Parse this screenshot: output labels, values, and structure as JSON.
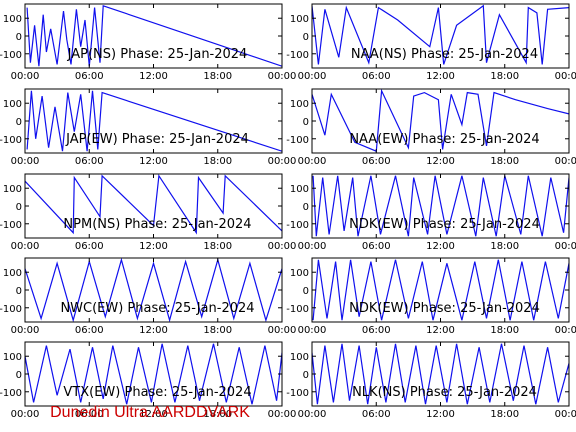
{
  "chart_data": [
    {
      "type": "line",
      "title": "JAP(NS) Phase: 25-Jan-2024",
      "x_ticks": [
        "00:00",
        "06:00",
        "12:00",
        "18:00",
        "00:00"
      ],
      "y_ticks": [
        100,
        0,
        -100
      ],
      "ylim": [
        -180,
        180
      ],
      "series": [
        {
          "points": [
            [
              0.2,
              160
            ],
            [
              0.5,
              -150
            ],
            [
              0.9,
              60
            ],
            [
              1.3,
              -170
            ],
            [
              1.7,
              120
            ],
            [
              2.0,
              -90
            ],
            [
              2.4,
              40
            ],
            [
              3.0,
              -160
            ],
            [
              3.6,
              140
            ],
            [
              3.9,
              -20
            ],
            [
              4.3,
              -160
            ],
            [
              4.8,
              150
            ],
            [
              5.2,
              -60
            ],
            [
              5.6,
              90
            ],
            [
              6.0,
              -170
            ],
            [
              6.5,
              160
            ],
            [
              7.0,
              -150
            ],
            [
              7.3,
              170
            ],
            [
              24.0,
              -170
            ]
          ]
        }
      ]
    },
    {
      "type": "line",
      "title": "NAA(NS) Phase: 25-Jan-2024",
      "x_ticks": [
        "00:00",
        "06:00",
        "12:00",
        "18:00",
        "00:00"
      ],
      "y_ticks": [
        100,
        0,
        -100
      ],
      "ylim": [
        -180,
        180
      ],
      "series": [
        {
          "points": [
            [
              0.0,
              170
            ],
            [
              0.6,
              -160
            ],
            [
              1.2,
              150
            ],
            [
              2.5,
              -120
            ],
            [
              3.2,
              160
            ],
            [
              5.3,
              -150
            ],
            [
              6.2,
              160
            ],
            [
              8.0,
              90
            ],
            [
              11.0,
              -60
            ],
            [
              11.8,
              160
            ],
            [
              12.3,
              -160
            ],
            [
              13.5,
              60
            ],
            [
              16.0,
              170
            ],
            [
              16.3,
              -150
            ],
            [
              17.5,
              120
            ],
            [
              20.0,
              -150
            ],
            [
              20.2,
              160
            ],
            [
              21.0,
              130
            ],
            [
              21.5,
              -160
            ],
            [
              22.0,
              150
            ],
            [
              24.0,
              160
            ]
          ]
        }
      ]
    },
    {
      "type": "line",
      "title": "JAP(EW) Phase: 25-Jan-2024",
      "x_ticks": [
        "00:00",
        "06:00",
        "12:00",
        "18:00",
        "00:00"
      ],
      "y_ticks": [
        100,
        0,
        -100
      ],
      "ylim": [
        -180,
        180
      ],
      "series": [
        {
          "points": [
            [
              0.2,
              -160
            ],
            [
              0.6,
              170
            ],
            [
              1.0,
              -100
            ],
            [
              1.6,
              140
            ],
            [
              2.2,
              -150
            ],
            [
              2.8,
              80
            ],
            [
              3.5,
              -170
            ],
            [
              4.0,
              160
            ],
            [
              4.6,
              -60
            ],
            [
              5.2,
              150
            ],
            [
              5.8,
              -170
            ],
            [
              6.3,
              170
            ],
            [
              6.8,
              -160
            ],
            [
              7.2,
              160
            ],
            [
              24.0,
              -170
            ]
          ]
        }
      ]
    },
    {
      "type": "line",
      "title": "NAA(EW) Phase: 25-Jan-2024",
      "x_ticks": [
        "00:00",
        "06:00",
        "12:00",
        "18:00",
        "00:00"
      ],
      "y_ticks": [
        100,
        0,
        -100
      ],
      "ylim": [
        -180,
        180
      ],
      "series": [
        {
          "points": [
            [
              0.0,
              150
            ],
            [
              1.2,
              -80
            ],
            [
              1.8,
              150
            ],
            [
              4.0,
              -120
            ],
            [
              6.0,
              -170
            ],
            [
              6.5,
              170
            ],
            [
              9.0,
              -150
            ],
            [
              9.5,
              140
            ],
            [
              10.5,
              160
            ],
            [
              11.8,
              120
            ],
            [
              12.2,
              -160
            ],
            [
              13.0,
              150
            ],
            [
              14.0,
              -20
            ],
            [
              14.5,
              160
            ],
            [
              15.5,
              150
            ],
            [
              16.3,
              -140
            ],
            [
              17.0,
              160
            ],
            [
              19.0,
              120
            ],
            [
              22.0,
              70
            ],
            [
              24.0,
              40
            ]
          ]
        }
      ]
    },
    {
      "type": "line",
      "title": "NPM(NS) Phase: 25-Jan-2024",
      "x_ticks": [
        "00:00",
        "06:00",
        "12:00",
        "18:00",
        "00:00"
      ],
      "y_ticks": [
        100,
        0,
        -100
      ],
      "ylim": [
        -180,
        180
      ],
      "series": [
        {
          "points": [
            [
              0.0,
              140
            ],
            [
              4.5,
              -150
            ],
            [
              4.6,
              160
            ],
            [
              7.0,
              -60
            ],
            [
              7.2,
              170
            ],
            [
              12.0,
              -110
            ],
            [
              12.5,
              170
            ],
            [
              16.0,
              -150
            ],
            [
              16.2,
              160
            ],
            [
              18.5,
              -40
            ],
            [
              18.7,
              170
            ],
            [
              24.0,
              -140
            ]
          ]
        }
      ]
    },
    {
      "type": "line",
      "title": "NDK(EW) Phase: 25-Jan-2024",
      "x_ticks": [
        "00:00",
        "06:00",
        "12:00",
        "18:00",
        "00:00"
      ],
      "y_ticks": [
        100,
        0,
        -100
      ],
      "ylim": [
        -180,
        180
      ],
      "series": [
        {
          "points": [
            [
              0.1,
              170
            ],
            [
              0.4,
              -170
            ],
            [
              1.0,
              160
            ],
            [
              1.6,
              -160
            ],
            [
              2.4,
              170
            ],
            [
              3.0,
              -140
            ],
            [
              3.8,
              160
            ],
            [
              4.3,
              -170
            ],
            [
              5.5,
              170
            ],
            [
              6.4,
              -160
            ],
            [
              7.8,
              170
            ],
            [
              9.0,
              -170
            ],
            [
              9.5,
              160
            ],
            [
              10.8,
              -160
            ],
            [
              11.5,
              170
            ],
            [
              12.6,
              -160
            ],
            [
              14.0,
              170
            ],
            [
              15.3,
              -170
            ],
            [
              16.0,
              160
            ],
            [
              17.2,
              -170
            ],
            [
              18.0,
              170
            ],
            [
              19.5,
              -160
            ],
            [
              20.2,
              170
            ],
            [
              21.5,
              -170
            ],
            [
              22.3,
              160
            ],
            [
              23.5,
              -150
            ],
            [
              24.0,
              160
            ]
          ]
        }
      ]
    },
    {
      "type": "line",
      "title": "NWC(EW) Phase: 25-Jan-2024",
      "x_ticks": [
        "00:00",
        "06:00",
        "12:00",
        "18:00",
        "00:00"
      ],
      "y_ticks": [
        100,
        0,
        -100
      ],
      "ylim": [
        -180,
        180
      ],
      "series": [
        {
          "points": [
            [
              0.0,
              120
            ],
            [
              1.5,
              -160
            ],
            [
              3.0,
              150
            ],
            [
              4.5,
              -170
            ],
            [
              6.0,
              160
            ],
            [
              7.5,
              -150
            ],
            [
              9.0,
              170
            ],
            [
              10.5,
              -160
            ],
            [
              12.0,
              150
            ],
            [
              13.5,
              -170
            ],
            [
              15.0,
              160
            ],
            [
              16.5,
              -150
            ],
            [
              18.0,
              170
            ],
            [
              19.5,
              -160
            ],
            [
              21.0,
              150
            ],
            [
              22.5,
              -170
            ],
            [
              24.0,
              120
            ]
          ]
        }
      ]
    },
    {
      "type": "line",
      "title": "NDK(EW) Phase: 25-Jan-2024",
      "x_ticks": [
        "00:00",
        "06:00",
        "12:00",
        "18:00",
        "00:00"
      ],
      "y_ticks": [
        100,
        0,
        -100
      ],
      "ylim": [
        -180,
        180
      ],
      "series": [
        {
          "points": [
            [
              0.1,
              -170
            ],
            [
              0.6,
              170
            ],
            [
              1.4,
              -160
            ],
            [
              2.2,
              160
            ],
            [
              2.8,
              -170
            ],
            [
              3.6,
              170
            ],
            [
              4.4,
              -150
            ],
            [
              5.5,
              160
            ],
            [
              6.5,
              -170
            ],
            [
              7.8,
              170
            ],
            [
              9.0,
              -160
            ],
            [
              10.3,
              160
            ],
            [
              11.3,
              -170
            ],
            [
              12.6,
              150
            ],
            [
              14.0,
              -170
            ],
            [
              15.2,
              160
            ],
            [
              16.3,
              -160
            ],
            [
              17.4,
              170
            ],
            [
              18.5,
              -170
            ],
            [
              19.6,
              160
            ],
            [
              20.7,
              -170
            ],
            [
              21.8,
              160
            ],
            [
              23.0,
              -160
            ],
            [
              24.0,
              150
            ]
          ]
        }
      ]
    },
    {
      "type": "line",
      "title": "VTX(EW) Phase: 25-Jan-2024",
      "x_ticks": [
        "00:00",
        "06:00",
        "12:00",
        "18:00",
        "00:00"
      ],
      "y_ticks": [
        100,
        0,
        -100
      ],
      "ylim": [
        -180,
        180
      ],
      "series": [
        {
          "points": [
            [
              0.0,
              100
            ],
            [
              0.8,
              -160
            ],
            [
              2.0,
              160
            ],
            [
              3.0,
              -120
            ],
            [
              4.2,
              140
            ],
            [
              5.2,
              -160
            ],
            [
              6.3,
              150
            ],
            [
              7.3,
              -140
            ],
            [
              8.2,
              160
            ],
            [
              9.5,
              -170
            ],
            [
              10.6,
              150
            ],
            [
              11.8,
              -160
            ],
            [
              12.8,
              170
            ],
            [
              14.0,
              -160
            ],
            [
              15.2,
              160
            ],
            [
              16.3,
              -150
            ],
            [
              17.6,
              170
            ],
            [
              18.8,
              -160
            ],
            [
              20.0,
              150
            ],
            [
              21.2,
              -170
            ],
            [
              22.4,
              160
            ],
            [
              23.5,
              -150
            ],
            [
              24.0,
              120
            ]
          ]
        }
      ]
    },
    {
      "type": "line",
      "title": "NLK(NS) Phase: 25-Jan-2024",
      "x_ticks": [
        "00:00",
        "06:00",
        "12:00",
        "18:00",
        "00:00"
      ],
      "y_ticks": [
        100,
        0,
        -100
      ],
      "ylim": [
        -180,
        180
      ],
      "series": [
        {
          "points": [
            [
              0.0,
              120
            ],
            [
              0.5,
              -170
            ],
            [
              1.2,
              160
            ],
            [
              2.0,
              -160
            ],
            [
              2.8,
              170
            ],
            [
              3.5,
              -150
            ],
            [
              4.4,
              160
            ],
            [
              5.2,
              -170
            ],
            [
              6.0,
              150
            ],
            [
              6.9,
              -160
            ],
            [
              7.8,
              170
            ],
            [
              8.7,
              -160
            ],
            [
              9.7,
              160
            ],
            [
              10.6,
              -170
            ],
            [
              11.6,
              160
            ],
            [
              12.6,
              -160
            ],
            [
              13.5,
              170
            ],
            [
              14.5,
              -170
            ],
            [
              15.6,
              150
            ],
            [
              16.6,
              -160
            ],
            [
              17.7,
              170
            ],
            [
              18.8,
              -150
            ],
            [
              19.8,
              160
            ],
            [
              20.9,
              -170
            ],
            [
              22.0,
              150
            ],
            [
              23.0,
              -160
            ],
            [
              24.0,
              60
            ]
          ]
        }
      ]
    }
  ],
  "footer": "Dunedin Ultra AARDDVARK",
  "colors": {
    "trace": "#1010ee",
    "footer": "#cc0000"
  }
}
